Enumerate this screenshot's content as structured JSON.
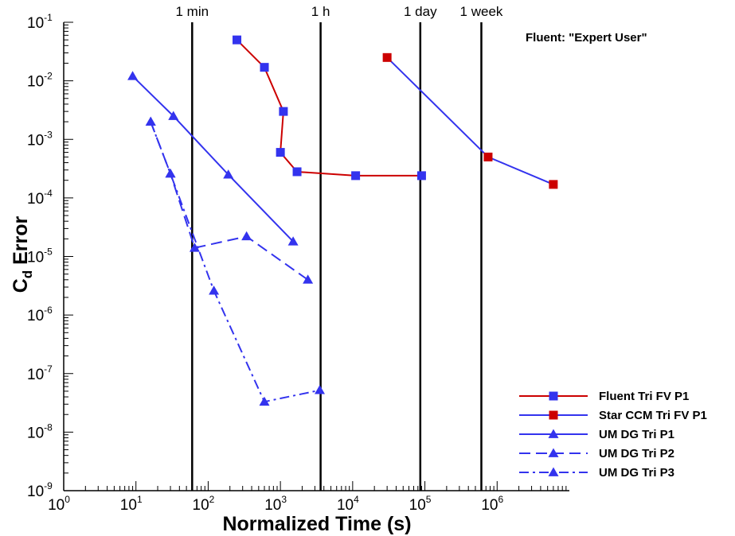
{
  "chart_data": {
    "type": "line",
    "xlabel": "Normalized Time (s)",
    "ylabel_main": "C",
    "ylabel_sub": "d",
    "ylabel_rest": " Error",
    "xscale": "log",
    "yscale": "log",
    "xlim": [
      1,
      10000000
    ],
    "ylim": [
      1e-09,
      0.1
    ],
    "grid": false,
    "legend_position": "bottom-right",
    "x_ticks": [
      {
        "base": "10",
        "exp": "0",
        "value": 1
      },
      {
        "base": "10",
        "exp": "1",
        "value": 10
      },
      {
        "base": "10",
        "exp": "2",
        "value": 100
      },
      {
        "base": "10",
        "exp": "3",
        "value": 1000
      },
      {
        "base": "10",
        "exp": "4",
        "value": 10000
      },
      {
        "base": "10",
        "exp": "5",
        "value": 100000
      },
      {
        "base": "10",
        "exp": "6",
        "value": 1000000
      }
    ],
    "y_ticks": [
      {
        "base": "10",
        "exp": "-1",
        "value": 0.1
      },
      {
        "base": "10",
        "exp": "-2",
        "value": 0.01
      },
      {
        "base": "10",
        "exp": "-3",
        "value": 0.001
      },
      {
        "base": "10",
        "exp": "-4",
        "value": 0.0001
      },
      {
        "base": "10",
        "exp": "-5",
        "value": 1e-05
      },
      {
        "base": "10",
        "exp": "-6",
        "value": 1e-06
      },
      {
        "base": "10",
        "exp": "-7",
        "value": 1e-07
      },
      {
        "base": "10",
        "exp": "-8",
        "value": 1e-08
      },
      {
        "base": "10",
        "exp": "-9",
        "value": 1e-09
      }
    ],
    "time_markers": [
      {
        "label": "1 min",
        "x": 60
      },
      {
        "label": "1 h",
        "x": 3600
      },
      {
        "label": "1 day",
        "x": 86400
      },
      {
        "label": "1 week",
        "x": 604800
      }
    ],
    "annotation": "Fluent: \"Expert User\"",
    "series": [
      {
        "name": "Fluent Tri FV P1",
        "line_color": "#cc0000",
        "marker_color": "#3333ee",
        "marker": "square",
        "dash": "solid",
        "x": [
          250,
          600,
          1100,
          1000,
          1700,
          11000,
          90000
        ],
        "y": [
          0.05,
          0.017,
          0.003,
          0.0006,
          0.00028,
          0.00024,
          0.00024
        ]
      },
      {
        "name": "Star CCM Tri FV P1",
        "line_color": "#3333ee",
        "marker_color": "#cc0000",
        "marker": "square",
        "dash": "solid",
        "x": [
          30000,
          750000,
          6000000
        ],
        "y": [
          0.025,
          0.0005,
          0.00017
        ]
      },
      {
        "name": "UM DG Tri P1",
        "line_color": "#3333ee",
        "marker_color": "#3333ee",
        "marker": "triangle",
        "dash": "solid",
        "x": [
          9,
          33,
          190,
          1500
        ],
        "y": [
          0.012,
          0.0025,
          0.00025,
          1.8e-05
        ]
      },
      {
        "name": "UM DG Tri P2",
        "line_color": "#3333ee",
        "marker_color": "#3333ee",
        "marker": "triangle",
        "dash": "dash",
        "x": [
          16,
          30,
          65,
          340,
          2400
        ],
        "y": [
          0.002,
          0.00026,
          1.4e-05,
          2.2e-05,
          4e-06
        ]
      },
      {
        "name": "UM DG Tri P3",
        "line_color": "#3333ee",
        "marker_color": "#3333ee",
        "marker": "triangle",
        "dash": "dashdot",
        "x": [
          16,
          30,
          120,
          600,
          3500
        ],
        "y": [
          0.002,
          0.00026,
          2.6e-06,
          3.3e-08,
          5.2e-08
        ]
      }
    ]
  }
}
